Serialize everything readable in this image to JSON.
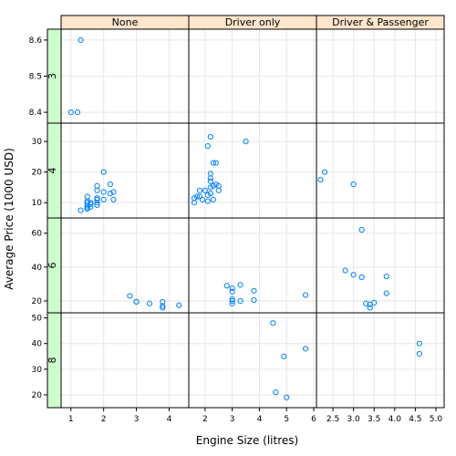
{
  "colors": {
    "point": "#0080ff",
    "strip_top": "#ffe5cc",
    "strip_left": "#ccffcc",
    "grid": "#e6e6e6"
  },
  "chart_data": {
    "type": "scatter",
    "xlabel": "Engine Size (litres)",
    "ylabel": "Average Price (1000 USD)",
    "columns": [
      "None",
      "Driver only",
      "Driver & Passenger"
    ],
    "rows": [
      "3",
      "4",
      "6",
      "8"
    ],
    "x_ticks": {
      "None": [
        1,
        2,
        3,
        4
      ],
      "Driver only": [
        2,
        3,
        4,
        5,
        6
      ],
      "Driver & Passenger": [
        2.5,
        3.0,
        3.5,
        4.0,
        4.5,
        5.0
      ]
    },
    "x_tick_labels": {
      "None": [
        "1",
        "2",
        "3",
        "4"
      ],
      "Driver only": [
        "2",
        "3",
        "4",
        "5",
        "6"
      ],
      "Driver & Passenger": [
        "2.5",
        "3.0",
        "3.5",
        "4.0",
        "4.5",
        "5.0"
      ]
    },
    "x_ranges": {
      "None": [
        0.7,
        4.6
      ],
      "Driver only": [
        1.4,
        6.1
      ],
      "Driver & Passenger": [
        2.1,
        5.2
      ]
    },
    "y_ranges": {
      "3": [
        8.37,
        8.63
      ],
      "4": [
        5,
        36
      ],
      "6": [
        13,
        69
      ],
      "8": [
        15,
        52
      ]
    },
    "y_ticks": {
      "3": [
        8.4,
        8.5,
        8.6
      ],
      "4": [
        10,
        20,
        30
      ],
      "6": [
        20,
        40,
        60
      ],
      "8": [
        20,
        30,
        40,
        50
      ]
    },
    "y_tick_labels": {
      "3": [
        "8.4",
        "8.5",
        "8.6"
      ],
      "4": [
        "10",
        "20",
        "30"
      ],
      "6": [
        "20",
        "40",
        "60"
      ],
      "8": [
        "20",
        "30",
        "40",
        "50"
      ]
    },
    "series": [
      {
        "col": "None",
        "row": "3",
        "points": [
          [
            1.0,
            8.4
          ],
          [
            1.2,
            8.4
          ],
          [
            1.3,
            8.6
          ]
        ]
      },
      {
        "col": "None",
        "row": "4",
        "points": [
          [
            1.3,
            7.5
          ],
          [
            1.5,
            8.0
          ],
          [
            1.5,
            8.4
          ],
          [
            1.5,
            9.0
          ],
          [
            1.5,
            10.0
          ],
          [
            1.5,
            10.5
          ],
          [
            1.5,
            12.0
          ],
          [
            1.6,
            8.6
          ],
          [
            1.6,
            9.5
          ],
          [
            1.6,
            10.0
          ],
          [
            1.8,
            9.2
          ],
          [
            1.8,
            10.0
          ],
          [
            1.8,
            11.0
          ],
          [
            1.8,
            11.5
          ],
          [
            1.8,
            14.0
          ],
          [
            1.8,
            15.5
          ],
          [
            2.0,
            11.0
          ],
          [
            2.0,
            13.5
          ],
          [
            2.0,
            20.0
          ],
          [
            2.2,
            13.0
          ],
          [
            2.2,
            16.0
          ],
          [
            2.3,
            11.0
          ],
          [
            2.3,
            13.5
          ]
        ]
      },
      {
        "col": "None",
        "row": "6",
        "points": [
          [
            2.8,
            23.0
          ],
          [
            3.0,
            19.5
          ],
          [
            3.0,
            19.5
          ],
          [
            3.4,
            18.5
          ],
          [
            3.8,
            16.0
          ],
          [
            3.8,
            17.0
          ],
          [
            3.8,
            19.5
          ],
          [
            4.3,
            17.5
          ]
        ]
      },
      {
        "col": "Driver only",
        "row": "4",
        "points": [
          [
            1.6,
            10.0
          ],
          [
            1.6,
            11.5
          ],
          [
            1.7,
            12.0
          ],
          [
            1.8,
            12.0
          ],
          [
            1.8,
            14.0
          ],
          [
            1.9,
            11.0
          ],
          [
            2.0,
            14.0
          ],
          [
            2.1,
            10.5
          ],
          [
            2.1,
            12.5
          ],
          [
            2.1,
            28.5
          ],
          [
            2.2,
            13.0
          ],
          [
            2.2,
            15.0
          ],
          [
            2.2,
            17.0
          ],
          [
            2.2,
            18.0
          ],
          [
            2.2,
            19.5
          ],
          [
            2.2,
            31.5
          ],
          [
            2.3,
            11.0
          ],
          [
            2.3,
            15.5
          ],
          [
            2.3,
            23.0
          ],
          [
            2.4,
            16.0
          ],
          [
            2.4,
            23.0
          ],
          [
            2.5,
            14.0
          ],
          [
            2.5,
            15.5
          ],
          [
            3.5,
            30.0
          ]
        ]
      },
      {
        "col": "Driver only",
        "row": "6",
        "points": [
          [
            2.8,
            29.0
          ],
          [
            3.0,
            18.5
          ],
          [
            3.0,
            20.0
          ],
          [
            3.0,
            21.0
          ],
          [
            3.0,
            25.5
          ],
          [
            3.0,
            27.5
          ],
          [
            3.3,
            20.0
          ],
          [
            3.3,
            29.5
          ],
          [
            3.8,
            20.5
          ],
          [
            3.8,
            26.0
          ],
          [
            5.7,
            23.5
          ]
        ]
      },
      {
        "col": "Driver only",
        "row": "8",
        "points": [
          [
            4.5,
            48.0
          ],
          [
            4.6,
            21.0
          ],
          [
            4.9,
            35.0
          ],
          [
            5.0,
            19.0
          ],
          [
            5.7,
            38.0
          ]
        ]
      },
      {
        "col": "Driver & Passenger",
        "row": "4",
        "points": [
          [
            2.2,
            17.5
          ],
          [
            2.3,
            20.0
          ],
          [
            3.0,
            16.0
          ]
        ]
      },
      {
        "col": "Driver & Passenger",
        "row": "6",
        "points": [
          [
            2.8,
            38.0
          ],
          [
            3.0,
            35.5
          ],
          [
            3.2,
            34.0
          ],
          [
            3.2,
            62.0
          ],
          [
            3.3,
            18.5
          ],
          [
            3.4,
            16.0
          ],
          [
            3.4,
            18.0
          ],
          [
            3.5,
            19.0
          ],
          [
            3.8,
            24.5
          ],
          [
            3.8,
            34.5
          ]
        ]
      },
      {
        "col": "Driver & Passenger",
        "row": "8",
        "points": [
          [
            4.6,
            36.0
          ],
          [
            4.6,
            40.0
          ]
        ]
      }
    ]
  }
}
